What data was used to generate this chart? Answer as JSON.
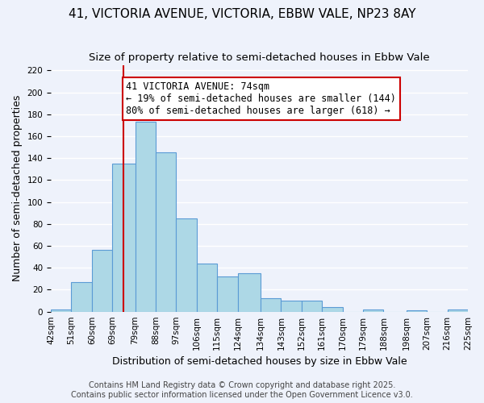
{
  "title": "41, VICTORIA AVENUE, VICTORIA, EBBW VALE, NP23 8AY",
  "subtitle": "Size of property relative to semi-detached houses in Ebbw Vale",
  "xlabel": "Distribution of semi-detached houses by size in Ebbw Vale",
  "ylabel": "Number of semi-detached properties",
  "bin_labels": [
    "42sqm",
    "51sqm",
    "60sqm",
    "69sqm",
    "79sqm",
    "88sqm",
    "97sqm",
    "106sqm",
    "115sqm",
    "124sqm",
    "134sqm",
    "143sqm",
    "152sqm",
    "161sqm",
    "170sqm",
    "179sqm",
    "188sqm",
    "198sqm",
    "207sqm",
    "216sqm",
    "225sqm"
  ],
  "bar_heights": [
    2,
    27,
    56,
    135,
    173,
    145,
    85,
    44,
    32,
    35,
    12,
    10,
    10,
    4,
    0,
    2,
    0,
    1,
    0,
    2
  ],
  "bar_color": "#add8e6",
  "bar_edge_color": "#5b9bd5",
  "property_line_x": 74,
  "bin_edges": [
    42,
    51,
    60,
    69,
    79,
    88,
    97,
    106,
    115,
    124,
    134,
    143,
    152,
    161,
    170,
    179,
    188,
    198,
    207,
    216,
    225
  ],
  "annotation_title": "41 VICTORIA AVENUE: 74sqm",
  "annotation_line1": "← 19% of semi-detached houses are smaller (144)",
  "annotation_line2": "80% of semi-detached houses are larger (618) →",
  "annotation_box_color": "#ffffff",
  "annotation_box_edge": "#cc0000",
  "property_line_color": "#cc0000",
  "ylim_max": 225,
  "yticks": [
    0,
    20,
    40,
    60,
    80,
    100,
    120,
    140,
    160,
    180,
    200,
    220
  ],
  "footer1": "Contains HM Land Registry data © Crown copyright and database right 2025.",
  "footer2": "Contains public sector information licensed under the Open Government Licence v3.0.",
  "background_color": "#eef2fb",
  "grid_color": "#ffffff",
  "title_fontsize": 11,
  "subtitle_fontsize": 9.5,
  "axis_label_fontsize": 9,
  "tick_fontsize": 7.5,
  "annotation_fontsize": 8.5,
  "footer_fontsize": 7
}
